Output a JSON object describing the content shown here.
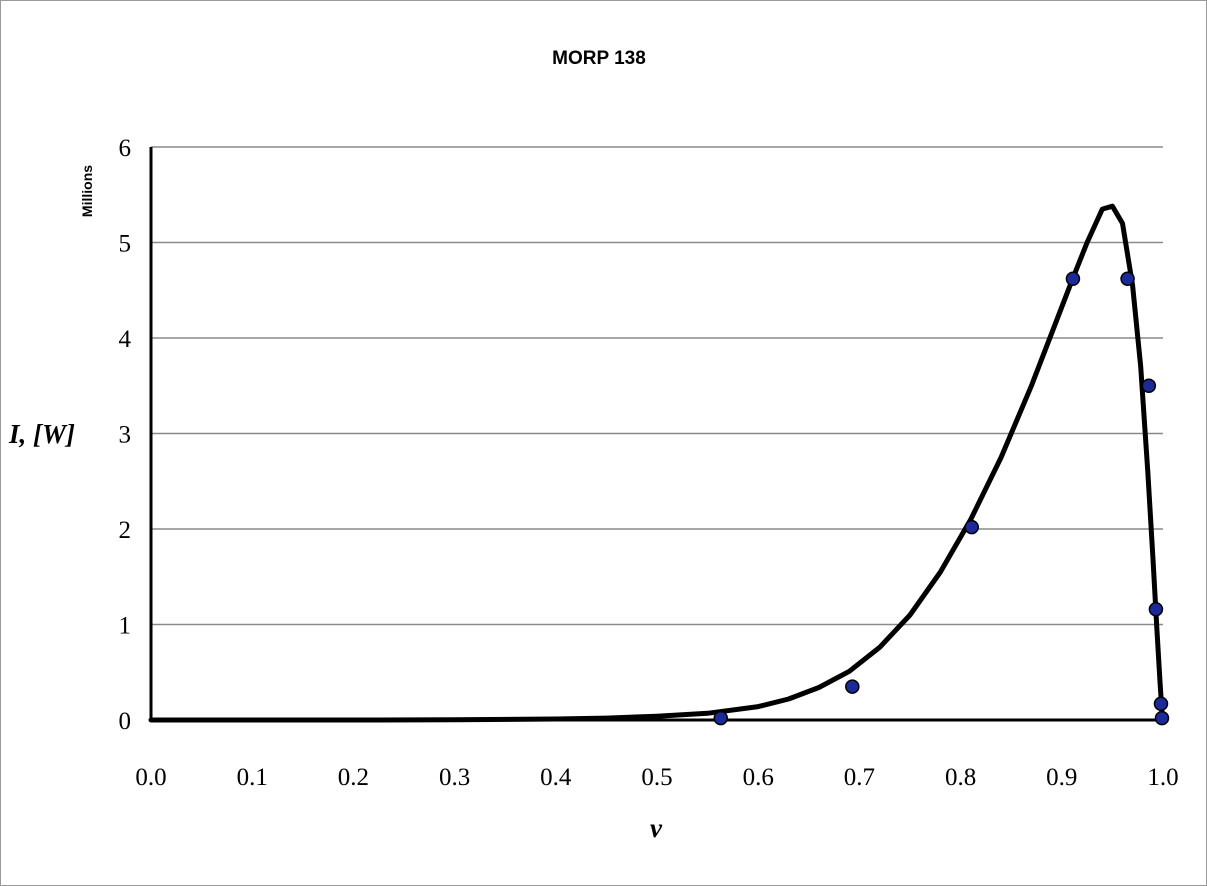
{
  "chart_data": {
    "type": "scatter",
    "title": "MORP 138",
    "xlabel": "v",
    "ylabel": "I, [W]",
    "y_unit_label": "Millions",
    "xlim": [
      0.0,
      1.0
    ],
    "ylim": [
      0,
      6
    ],
    "x_ticks": [
      "0.0",
      "0.1",
      "0.2",
      "0.3",
      "0.4",
      "0.5",
      "0.6",
      "0.7",
      "0.8",
      "0.9",
      "1.0"
    ],
    "y_ticks": [
      "0",
      "1",
      "2",
      "3",
      "4",
      "5",
      "6"
    ],
    "grid": "horizontal",
    "legend": "none",
    "colors": {
      "points": "#1a2a9a",
      "curve": "#000000",
      "grid": "#8a8a8a"
    },
    "series": [
      {
        "kind": "points",
        "x": [
          0.563,
          0.693,
          0.811,
          0.911,
          0.965,
          0.986,
          0.993,
          0.998,
          0.999
        ],
        "y": [
          0.02,
          0.35,
          2.02,
          4.62,
          4.62,
          3.5,
          1.16,
          0.17,
          0.02
        ]
      },
      {
        "kind": "fit-curve",
        "x": [
          0.0,
          0.1,
          0.2,
          0.3,
          0.4,
          0.45,
          0.5,
          0.55,
          0.6,
          0.63,
          0.66,
          0.69,
          0.72,
          0.75,
          0.78,
          0.81,
          0.84,
          0.87,
          0.89,
          0.91,
          0.925,
          0.94,
          0.95,
          0.96,
          0.97,
          0.978,
          0.985,
          0.99,
          0.994,
          0.997,
          0.999,
          1.0
        ],
        "y": [
          0.0,
          0.0,
          0.0,
          0.002,
          0.01,
          0.02,
          0.04,
          0.07,
          0.14,
          0.22,
          0.34,
          0.51,
          0.76,
          1.1,
          1.55,
          2.1,
          2.75,
          3.5,
          4.05,
          4.6,
          5.0,
          5.35,
          5.38,
          5.2,
          4.55,
          3.7,
          2.6,
          1.7,
          0.95,
          0.4,
          0.08,
          0.0
        ]
      }
    ]
  }
}
